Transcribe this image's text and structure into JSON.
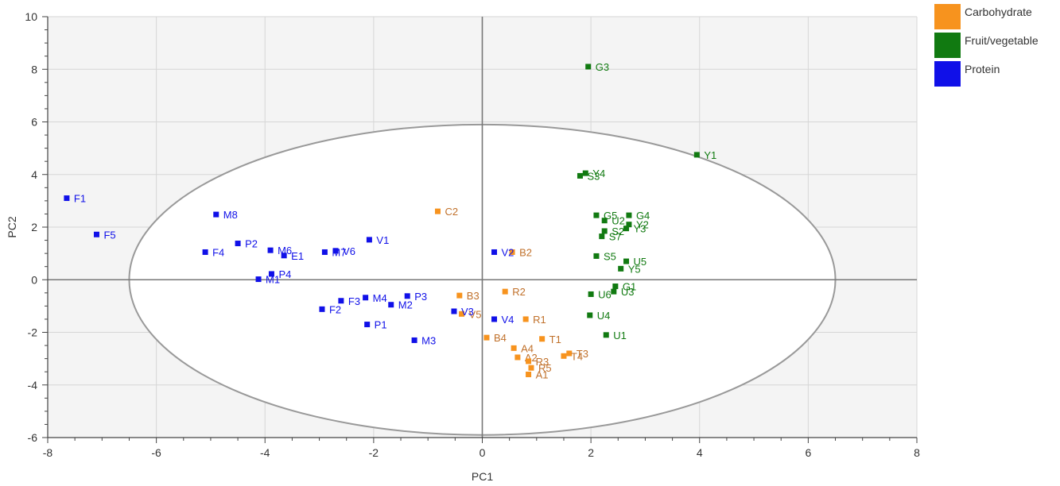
{
  "chart_data": {
    "type": "scatter",
    "xlabel": "PC1",
    "ylabel": "PC2",
    "xlim": [
      -8,
      8
    ],
    "ylim": [
      -6,
      10
    ],
    "x_ticks": [
      "-8",
      "-6",
      "-4",
      "-2",
      "0",
      "2",
      "4",
      "6",
      "8"
    ],
    "y_ticks": [
      "-6",
      "-4",
      "-2",
      "0",
      "2",
      "4",
      "6",
      "8",
      "10"
    ],
    "grid": true,
    "confidence_ellipse": {
      "center": [
        0,
        0
      ],
      "rx": 6.5,
      "ry": 5.9
    },
    "legend_position": "top-right",
    "series": [
      {
        "name": "Carbohydrate",
        "color": "#F7931E",
        "label_color": "#C0702A",
        "points": [
          {
            "label": "C2",
            "x": -0.82,
            "y": 2.6
          },
          {
            "label": "B2",
            "x": 0.55,
            "y": 1.05
          },
          {
            "label": "R2",
            "x": 0.42,
            "y": -0.45
          },
          {
            "label": "B3",
            "x": -0.42,
            "y": -0.6
          },
          {
            "label": "V5",
            "x": -0.38,
            "y": -1.3
          },
          {
            "label": "R1",
            "x": 0.8,
            "y": -1.5
          },
          {
            "label": "B4",
            "x": 0.08,
            "y": -2.2
          },
          {
            "label": "T1",
            "x": 1.1,
            "y": -2.25
          },
          {
            "label": "A4",
            "x": 0.58,
            "y": -2.6
          },
          {
            "label": "T3",
            "x": 1.6,
            "y": -2.8
          },
          {
            "label": "T4",
            "x": 1.5,
            "y": -2.9
          },
          {
            "label": "A2",
            "x": 0.65,
            "y": -2.95
          },
          {
            "label": "R3",
            "x": 0.85,
            "y": -3.1
          },
          {
            "label": "R5",
            "x": 0.9,
            "y": -3.35
          },
          {
            "label": "A1",
            "x": 0.85,
            "y": -3.6
          }
        ]
      },
      {
        "name": "Fruit/vegetable",
        "color": "#117A11",
        "label_color": "#117A11",
        "points": [
          {
            "label": "G3",
            "x": 1.95,
            "y": 8.1
          },
          {
            "label": "Y1",
            "x": 3.95,
            "y": 4.75
          },
          {
            "label": "Y4",
            "x": 1.9,
            "y": 4.05
          },
          {
            "label": "S3",
            "x": 1.8,
            "y": 3.95
          },
          {
            "label": "G5",
            "x": 2.1,
            "y": 2.45
          },
          {
            "label": "G4",
            "x": 2.7,
            "y": 2.45
          },
          {
            "label": "U2",
            "x": 2.25,
            "y": 2.25
          },
          {
            "label": "Y2",
            "x": 2.7,
            "y": 2.1
          },
          {
            "label": "Y3",
            "x": 2.65,
            "y": 1.95
          },
          {
            "label": "S2",
            "x": 2.25,
            "y": 1.85
          },
          {
            "label": "S7",
            "x": 2.2,
            "y": 1.65
          },
          {
            "label": "S5",
            "x": 2.1,
            "y": 0.9
          },
          {
            "label": "U5",
            "x": 2.65,
            "y": 0.7
          },
          {
            "label": "Y5",
            "x": 2.55,
            "y": 0.42
          },
          {
            "label": "G1",
            "x": 2.45,
            "y": -0.25
          },
          {
            "label": "U3",
            "x": 2.42,
            "y": -0.45
          },
          {
            "label": "U6",
            "x": 2.0,
            "y": -0.55
          },
          {
            "label": "U4",
            "x": 1.98,
            "y": -1.35
          },
          {
            "label": "U1",
            "x": 2.28,
            "y": -2.1
          }
        ]
      },
      {
        "name": "Protein",
        "color": "#1010E8",
        "label_color": "#1010E8",
        "points": [
          {
            "label": "F1",
            "x": -7.65,
            "y": 3.1
          },
          {
            "label": "F5",
            "x": -7.1,
            "y": 1.72
          },
          {
            "label": "M8",
            "x": -4.9,
            "y": 2.48
          },
          {
            "label": "P2",
            "x": -4.5,
            "y": 1.38
          },
          {
            "label": "F4",
            "x": -5.1,
            "y": 1.05
          },
          {
            "label": "M6",
            "x": -3.9,
            "y": 1.12
          },
          {
            "label": "E1",
            "x": -3.65,
            "y": 0.92
          },
          {
            "label": "M7",
            "x": -2.9,
            "y": 1.05
          },
          {
            "label": "V6",
            "x": -2.7,
            "y": 1.1
          },
          {
            "label": "V1",
            "x": -2.08,
            "y": 1.52
          },
          {
            "label": "V2",
            "x": 0.22,
            "y": 1.05
          },
          {
            "label": "P4",
            "x": -3.88,
            "y": 0.22
          },
          {
            "label": "M1",
            "x": -4.12,
            "y": 0.02
          },
          {
            "label": "M4",
            "x": -2.15,
            "y": -0.68
          },
          {
            "label": "P3",
            "x": -1.38,
            "y": -0.62
          },
          {
            "label": "F3",
            "x": -2.6,
            "y": -0.8
          },
          {
            "label": "M2",
            "x": -1.68,
            "y": -0.95
          },
          {
            "label": "F2",
            "x": -2.95,
            "y": -1.12
          },
          {
            "label": "V3",
            "x": -0.52,
            "y": -1.2
          },
          {
            "label": "V4",
            "x": 0.22,
            "y": -1.5
          },
          {
            "label": "P1",
            "x": -2.12,
            "y": -1.7
          },
          {
            "label": "M3",
            "x": -1.25,
            "y": -2.3
          }
        ]
      }
    ]
  }
}
